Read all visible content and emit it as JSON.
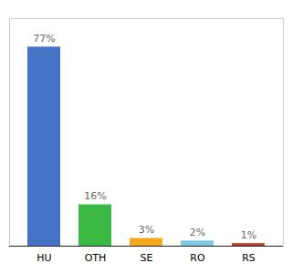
{
  "chart_data": {
    "type": "bar",
    "categories": [
      "HU",
      "OTH",
      "SE",
      "RO",
      "RS"
    ],
    "values": [
      77,
      16,
      3,
      2,
      1
    ],
    "value_labels": [
      "77%",
      "16%",
      "3%",
      "2%",
      "1%"
    ],
    "colors": [
      "#4472C4",
      "#3CB844",
      "#F5A623",
      "#7EC8E3",
      "#C0392B"
    ],
    "ylim": [
      0,
      88
    ],
    "data_labels": true,
    "grid": false,
    "tick_labels": "x"
  }
}
